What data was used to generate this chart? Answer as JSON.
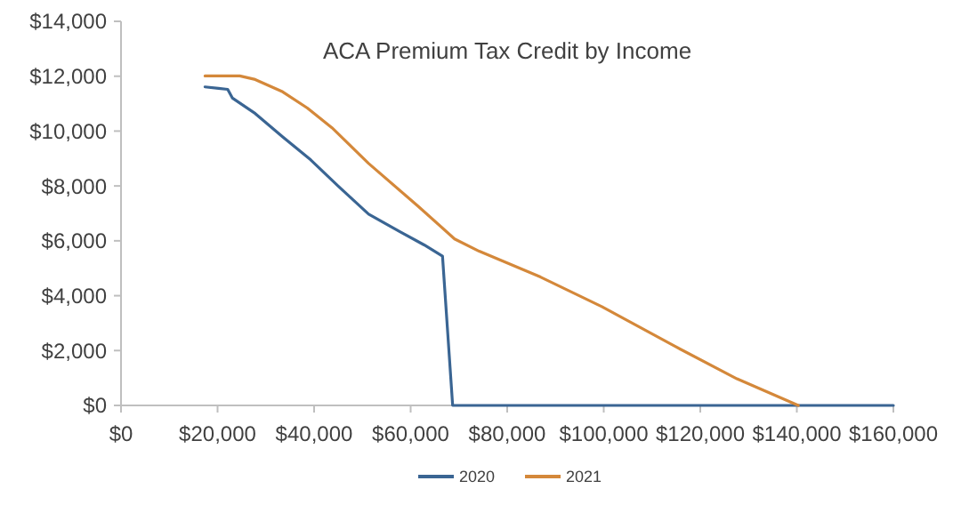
{
  "chart_data": {
    "type": "line",
    "title": "ACA Premium Tax Credit by Income",
    "xlim": [
      0,
      160000
    ],
    "xticks": [
      {
        "value": 0,
        "label": "$0"
      },
      {
        "value": 20000,
        "label": "$20,000"
      },
      {
        "value": 40000,
        "label": "$40,000"
      },
      {
        "value": 60000,
        "label": "$60,000"
      },
      {
        "value": 80000,
        "label": "$80,000"
      },
      {
        "value": 100000,
        "label": "$100,000"
      },
      {
        "value": 120000,
        "label": "$120,000"
      },
      {
        "value": 140000,
        "label": "$140,000"
      },
      {
        "value": 160000,
        "label": "$160,000"
      }
    ],
    "ylim": [
      0,
      14000
    ],
    "yticks": [
      {
        "value": 0,
        "label": "$0"
      },
      {
        "value": 2000,
        "label": "$2,000"
      },
      {
        "value": 4000,
        "label": "$4,000"
      },
      {
        "value": 6000,
        "label": "$6,000"
      },
      {
        "value": 8000,
        "label": "$8,000"
      },
      {
        "value": 10000,
        "label": "$10,000"
      },
      {
        "value": 12000,
        "label": "$12,000"
      },
      {
        "value": 14000,
        "label": "$14,000"
      }
    ],
    "grid": false,
    "legend": "bottom",
    "marker": "none",
    "line_style": "solid",
    "series": [
      {
        "name": "2020",
        "color": "#3a6593",
        "x": [
          17400,
          20200,
          22100,
          23100,
          27800,
          33500,
          39300,
          45000,
          51300,
          57700,
          62800,
          66600,
          68700,
          160000
        ],
        "values": [
          11610,
          11560,
          11520,
          11200,
          10640,
          9790,
          8950,
          7990,
          6970,
          6340,
          5850,
          5440,
          0,
          0
        ]
      },
      {
        "name": "2021",
        "color": "#d4883a",
        "x": [
          17400,
          24600,
          27800,
          33500,
          38600,
          43700,
          51300,
          61500,
          69100,
          74200,
          86900,
          99600,
          114900,
          127600,
          140300
        ],
        "values": [
          12010,
          12010,
          11880,
          11430,
          10840,
          10120,
          8820,
          7270,
          6070,
          5620,
          4680,
          3600,
          2140,
          970,
          0
        ]
      }
    ]
  }
}
